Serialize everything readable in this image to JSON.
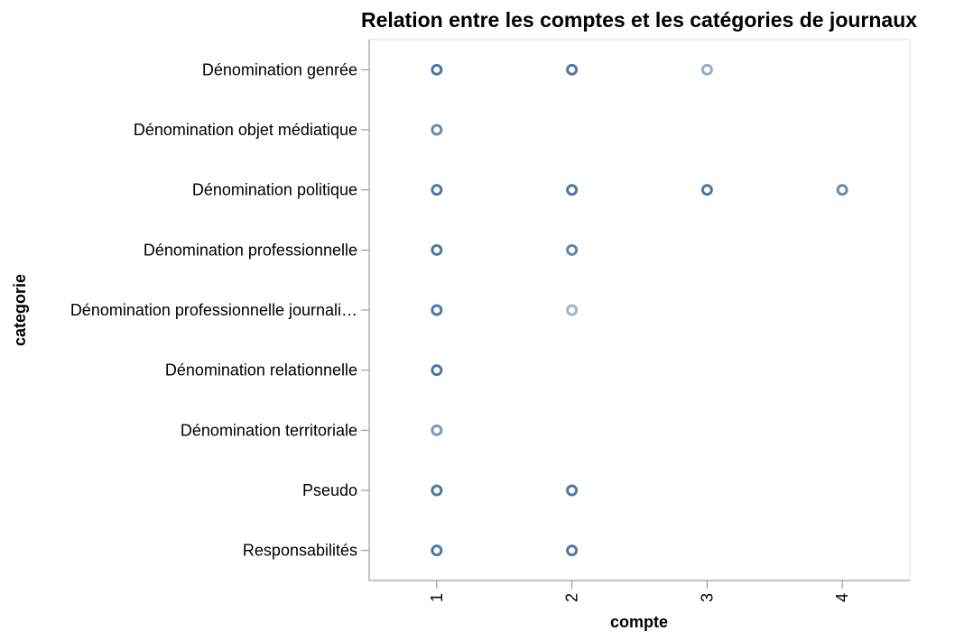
{
  "chart_data": {
    "type": "scatter",
    "title": "Relation entre les comptes et les catégories de journaux",
    "xlabel": "compte",
    "ylabel": "categorie",
    "xlim": [
      0.5,
      4.5
    ],
    "x_ticks": [
      1,
      2,
      3,
      4
    ],
    "categories": [
      "Dénomination genrée",
      "Dénomination objet médiatique",
      "Dénomination politique",
      "Dénomination professionnelle",
      "Dénomination professionnelle journali…",
      "Dénomination relationnelle",
      "Dénomination territoriale",
      "Pseudo",
      "Responsabilités"
    ],
    "mark": "hollow-circle",
    "color": "#4c78a8",
    "grid": false,
    "points": [
      {
        "category": "Dénomination genrée",
        "x": 1,
        "opacity": 1.0
      },
      {
        "category": "Dénomination genrée",
        "x": 2,
        "opacity": 1.0
      },
      {
        "category": "Dénomination genrée",
        "x": 3,
        "opacity": 0.6
      },
      {
        "category": "Dénomination objet médiatique",
        "x": 1,
        "opacity": 0.85
      },
      {
        "category": "Dénomination politique",
        "x": 1,
        "opacity": 1.0
      },
      {
        "category": "Dénomination politique",
        "x": 2,
        "opacity": 1.0
      },
      {
        "category": "Dénomination politique",
        "x": 3,
        "opacity": 1.0
      },
      {
        "category": "Dénomination politique",
        "x": 4,
        "opacity": 0.85
      },
      {
        "category": "Dénomination professionnelle",
        "x": 1,
        "opacity": 1.0
      },
      {
        "category": "Dénomination professionnelle",
        "x": 2,
        "opacity": 0.9
      },
      {
        "category": "Dénomination professionnelle journali…",
        "x": 1,
        "opacity": 1.0
      },
      {
        "category": "Dénomination professionnelle journali…",
        "x": 2,
        "opacity": 0.55
      },
      {
        "category": "Dénomination relationnelle",
        "x": 1,
        "opacity": 1.0
      },
      {
        "category": "Dénomination territoriale",
        "x": 1,
        "opacity": 0.75
      },
      {
        "category": "Pseudo",
        "x": 1,
        "opacity": 1.0
      },
      {
        "category": "Pseudo",
        "x": 2,
        "opacity": 1.0
      },
      {
        "category": "Responsabilités",
        "x": 1,
        "opacity": 1.0
      },
      {
        "category": "Responsabilités",
        "x": 2,
        "opacity": 1.0
      }
    ]
  }
}
